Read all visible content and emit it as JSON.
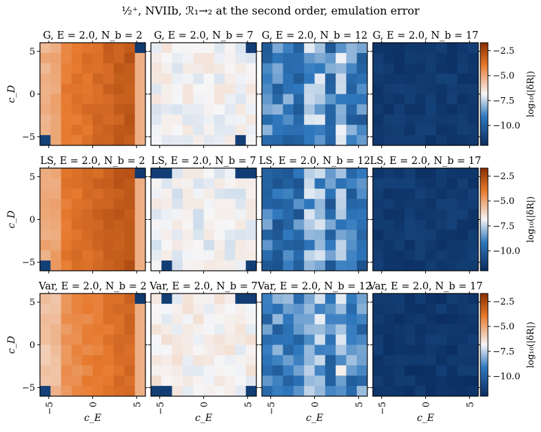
{
  "figure": {
    "title": "½⁺, NVIIb, ℛ₁→₂ at the second order, emulation error"
  },
  "chart_data": {
    "type": "heatmap",
    "title": "½⁺, NVIIb, ℛ₁→₂ at the second order, emulation error",
    "xlabel": "c_E",
    "ylabel": "c_D",
    "xlim": [
      -6,
      6
    ],
    "ylim": [
      -6,
      6
    ],
    "xticks": [
      "−5",
      "0",
      "5"
    ],
    "yticks": [
      "5",
      "0",
      "−5"
    ],
    "grid_size": 10,
    "colorbar": {
      "label": "log₁₀(|δR|)",
      "vmin": -12,
      "vmax": -1.7,
      "ticks": [
        "−2.5",
        "−5.0",
        "−7.5",
        "−10.0"
      ],
      "tick_values": [
        -2.5,
        -5.0,
        -7.5,
        -10.0
      ],
      "colors": [
        "#0a2c5e",
        "#2f78bd",
        "#f6f6f8",
        "#e77a2e",
        "#8a2e00"
      ]
    },
    "panels": [
      {
        "title": "G, E = 2.0, N_b = 2",
        "row": "G",
        "mean": -3.5,
        "pattern": "orange_grad"
      },
      {
        "title": "G, E = 2.0, N_b = 7",
        "row": "G",
        "mean": -6.8,
        "pattern": "pale"
      },
      {
        "title": "G, E = 2.0, N_b = 12",
        "row": "G",
        "mean": -9.2,
        "pattern": "blue_mixed"
      },
      {
        "title": "G, E = 2.0, N_b = 17",
        "row": "G",
        "mean": -11.5,
        "pattern": "dark"
      },
      {
        "title": "LS, E = 2.0, N_b = 2",
        "row": "LS",
        "mean": -3.4,
        "pattern": "orange_grad"
      },
      {
        "title": "LS, E = 2.0, N_b = 7",
        "row": "LS",
        "mean": -6.9,
        "pattern": "pale"
      },
      {
        "title": "LS, E = 2.0, N_b = 12",
        "row": "LS",
        "mean": -9.4,
        "pattern": "blue_mixed"
      },
      {
        "title": "LS, E = 2.0, N_b = 17",
        "row": "LS",
        "mean": -11.5,
        "pattern": "dark"
      },
      {
        "title": "Var, E = 2.0, N_b = 2",
        "row": "Var",
        "mean": -4.0,
        "pattern": "orange_grad"
      },
      {
        "title": "Var, E = 2.0, N_b = 7",
        "row": "Var",
        "mean": -6.7,
        "pattern": "pale"
      },
      {
        "title": "Var, E = 2.0, N_b = 12",
        "row": "Var",
        "mean": -9.0,
        "pattern": "blue_mixed"
      },
      {
        "title": "Var, E = 2.0, N_b = 17",
        "row": "Var",
        "mean": -11.6,
        "pattern": "dark"
      }
    ]
  }
}
